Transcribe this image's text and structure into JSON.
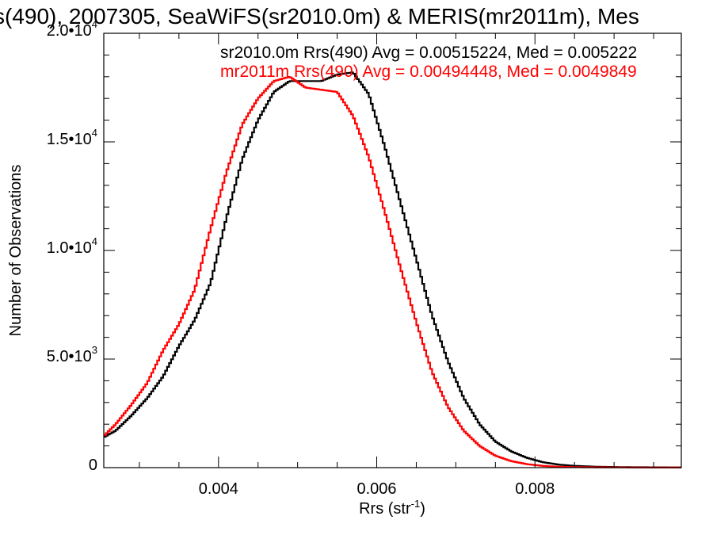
{
  "chart_data": {
    "type": "line",
    "title": "s(490), 2007305, SeaWiFS(sr2010.0m) & MERIS(mr2011m), Mes",
    "xlabel": "Rrs (str",
    "xlabel_sup": "-1",
    "xlabel_close": ")",
    "ylabel": "Number of Observations",
    "xlim": [
      0.00255,
      0.00985
    ],
    "ylim": [
      0,
      20000
    ],
    "x_ticks": [
      {
        "value": 0.004,
        "label": "0.004"
      },
      {
        "value": 0.006,
        "label": "0.006"
      },
      {
        "value": 0.008,
        "label": "0.008"
      }
    ],
    "y_ticks": [
      {
        "value": 0,
        "mant": "0",
        "exp": ""
      },
      {
        "value": 5000,
        "mant": "5.0•10",
        "exp": "3"
      },
      {
        "value": 10000,
        "mant": "1.0•10",
        "exp": "4"
      },
      {
        "value": 15000,
        "mant": "1.5•10",
        "exp": "4"
      },
      {
        "value": 20000,
        "mant": "2.0•10",
        "exp": "4"
      }
    ],
    "grid": false,
    "legend_position": "top-right",
    "series": [
      {
        "name": "sr2010.0m Rrs(490) Avg = 0.00515224, Med = 0.005222",
        "color": "#000000",
        "points": [
          [
            0.00255,
            1400
          ],
          [
            0.0027,
            1700
          ],
          [
            0.0029,
            2400
          ],
          [
            0.0031,
            3200
          ],
          [
            0.0033,
            4200
          ],
          [
            0.0035,
            5600
          ],
          [
            0.0037,
            6800
          ],
          [
            0.0039,
            8500
          ],
          [
            0.0041,
            11500
          ],
          [
            0.0043,
            14200
          ],
          [
            0.0045,
            16000
          ],
          [
            0.0047,
            17300
          ],
          [
            0.0049,
            17800
          ],
          [
            0.0051,
            17800
          ],
          [
            0.0053,
            17800
          ],
          [
            0.0055,
            18100
          ],
          [
            0.0057,
            18200
          ],
          [
            0.0059,
            17200
          ],
          [
            0.0061,
            14800
          ],
          [
            0.0063,
            12200
          ],
          [
            0.0065,
            9600
          ],
          [
            0.0067,
            7000
          ],
          [
            0.0069,
            4900
          ],
          [
            0.0071,
            3200
          ],
          [
            0.0073,
            2000
          ],
          [
            0.0075,
            1200
          ],
          [
            0.0077,
            750
          ],
          [
            0.0079,
            450
          ],
          [
            0.0081,
            250
          ],
          [
            0.0083,
            140
          ],
          [
            0.0085,
            80
          ],
          [
            0.0088,
            40
          ],
          [
            0.0092,
            20
          ],
          [
            0.00985,
            10
          ]
        ]
      },
      {
        "name": "mr2011m Rrs(490) Avg = 0.00494448, Med = 0.0049849",
        "color": "#ff0000",
        "points": [
          [
            0.00255,
            1450
          ],
          [
            0.0027,
            2000
          ],
          [
            0.0029,
            2900
          ],
          [
            0.0031,
            3900
          ],
          [
            0.0033,
            5400
          ],
          [
            0.0035,
            6600
          ],
          [
            0.0037,
            8200
          ],
          [
            0.0039,
            11000
          ],
          [
            0.0041,
            13600
          ],
          [
            0.0043,
            15800
          ],
          [
            0.0045,
            17000
          ],
          [
            0.0047,
            17800
          ],
          [
            0.0049,
            18000
          ],
          [
            0.0051,
            17500
          ],
          [
            0.0053,
            17400
          ],
          [
            0.0055,
            17300
          ],
          [
            0.0057,
            16200
          ],
          [
            0.0059,
            14300
          ],
          [
            0.0061,
            11800
          ],
          [
            0.0063,
            9200
          ],
          [
            0.0065,
            6700
          ],
          [
            0.0067,
            4400
          ],
          [
            0.0069,
            2800
          ],
          [
            0.0071,
            1700
          ],
          [
            0.0073,
            1000
          ],
          [
            0.0075,
            550
          ],
          [
            0.0077,
            300
          ],
          [
            0.0079,
            160
          ],
          [
            0.0081,
            80
          ],
          [
            0.0083,
            40
          ],
          [
            0.0086,
            20
          ],
          [
            0.009,
            10
          ],
          [
            0.00985,
            5
          ]
        ]
      }
    ]
  }
}
